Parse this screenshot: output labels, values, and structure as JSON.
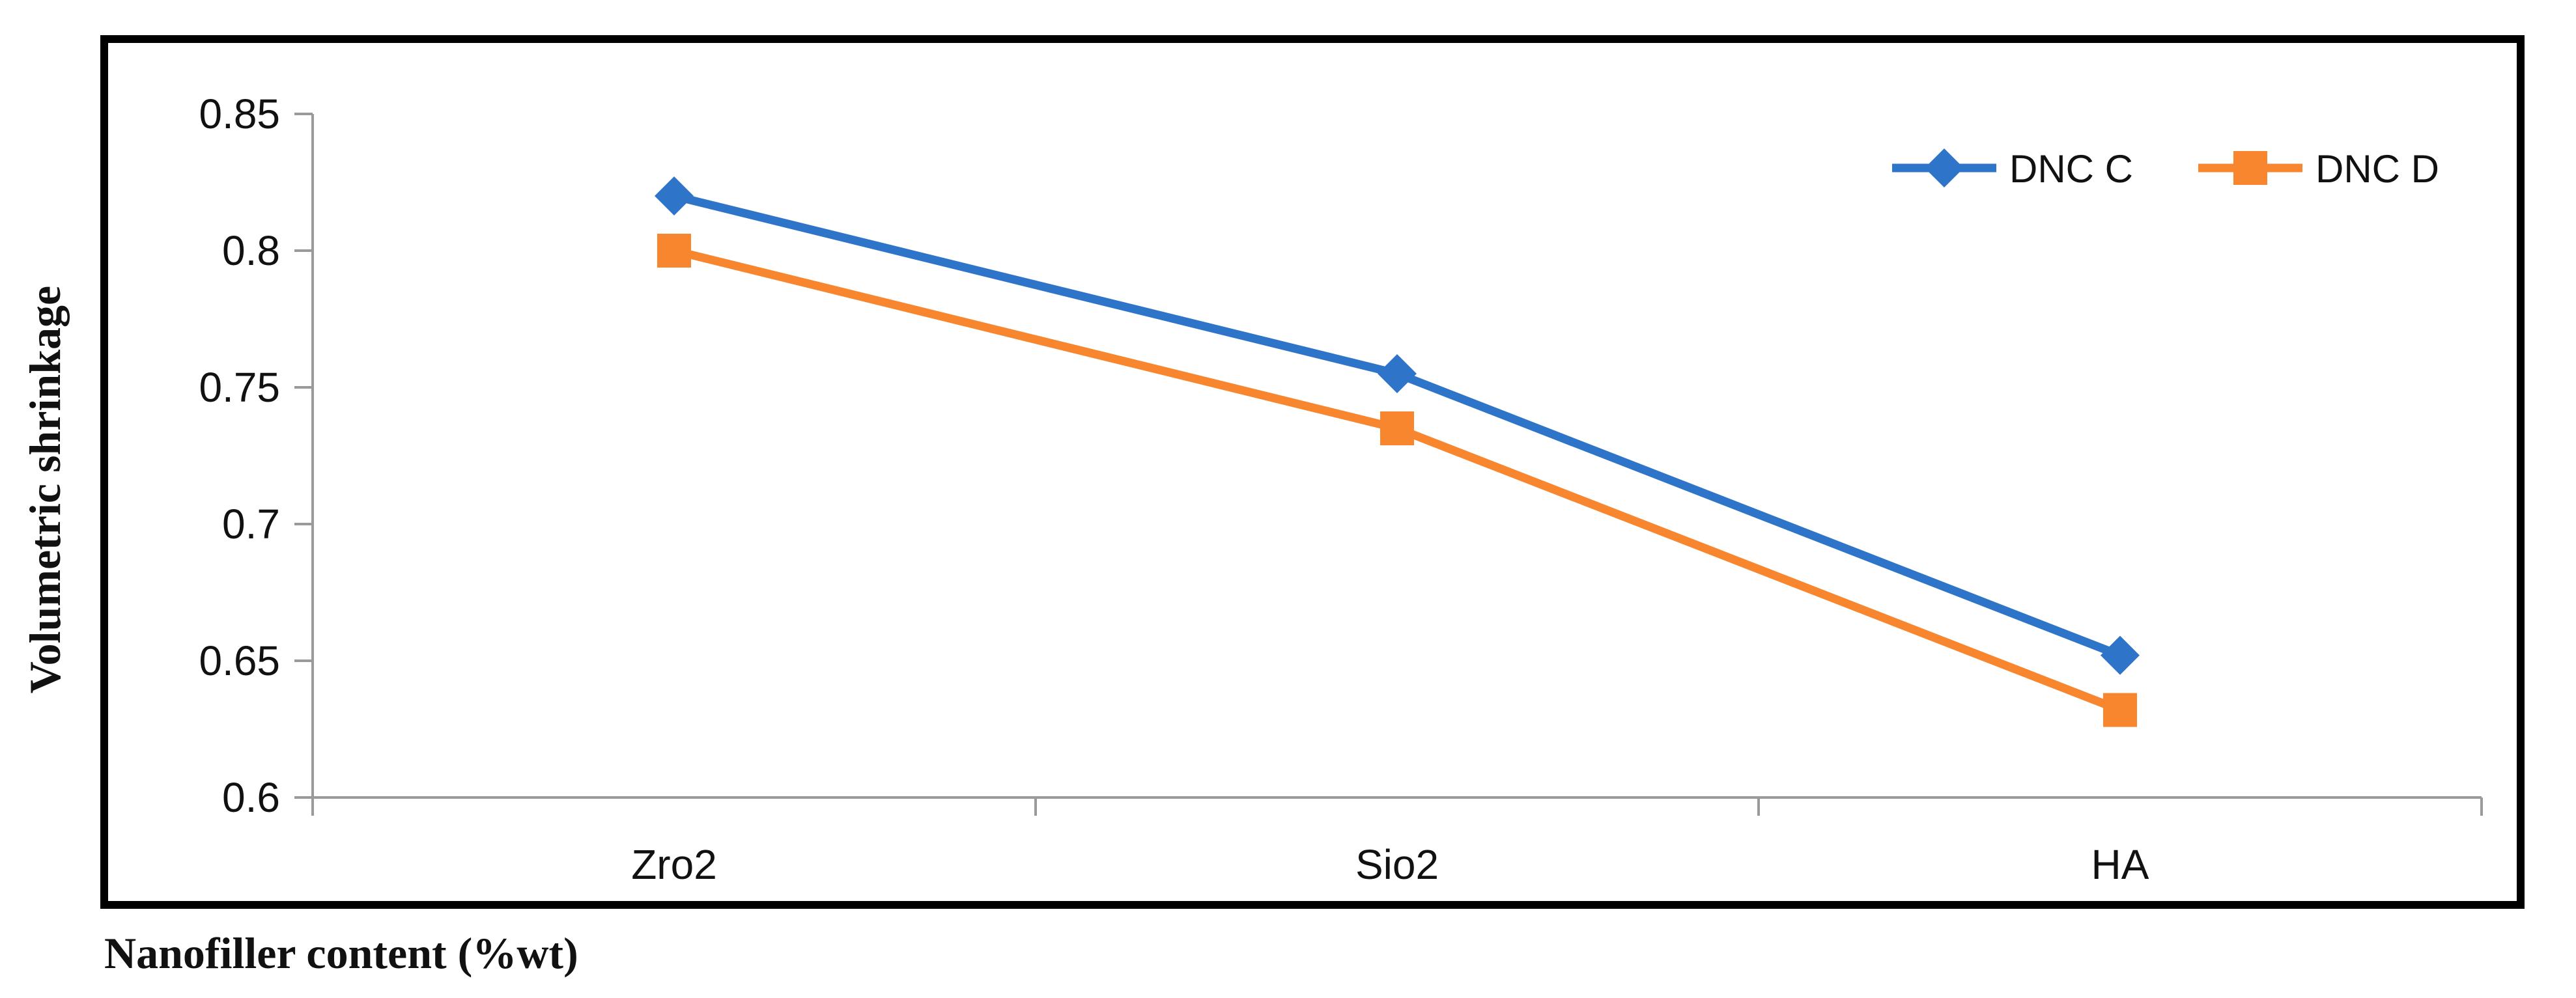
{
  "chart_data": {
    "type": "line",
    "title": "",
    "xlabel": "Nanofiller content (%wt)",
    "ylabel": "Volumetric shrinkage",
    "categories": [
      "Zro2",
      "Sio2",
      "HA"
    ],
    "series": [
      {
        "name": "DNC C",
        "values": [
          0.82,
          0.755,
          0.652
        ],
        "color": "#2E75C9",
        "marker": "diamond"
      },
      {
        "name": "DNC D",
        "values": [
          0.8,
          0.735,
          0.632
        ],
        "color": "#F7862E",
        "marker": "square"
      }
    ],
    "ylim": [
      0.6,
      0.85
    ],
    "yticks": [
      "0.6",
      "0.65",
      "0.7",
      "0.75",
      "0.8",
      "0.85"
    ],
    "grid": false,
    "legend_position": "top-right"
  }
}
